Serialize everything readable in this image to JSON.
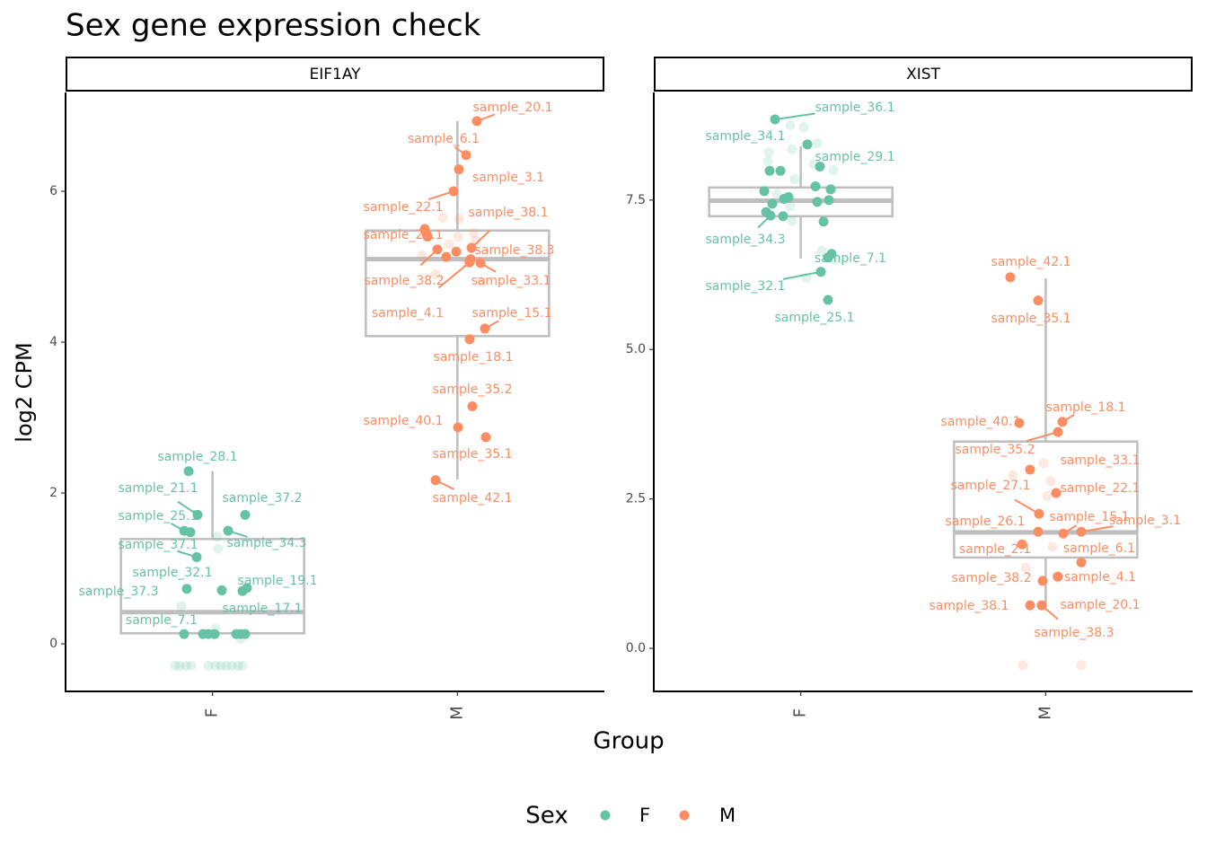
{
  "chart_data": {
    "type": "box",
    "title": "Sex gene expression check",
    "y_label": "log2 CPM",
    "x_label": "Group",
    "legend_title": "Sex",
    "legend": [
      {
        "name": "F",
        "color": "#66c2a5"
      },
      {
        "name": "M",
        "color": "#fc8d62"
      }
    ],
    "panels": [
      {
        "title": "EIF1AY",
        "categories": [
          "F",
          "M"
        ],
        "ylim": [
          -0.63,
          7.31
        ],
        "yticks": [
          0,
          2,
          4,
          6
        ],
        "boxes": [
          {
            "whisker_low": 0.13,
            "q1": 0.14,
            "median": 0.42,
            "q3": 1.39,
            "whisker_high": 2.29
          },
          {
            "whisker_low": 2.18,
            "q1": 4.08,
            "median": 5.1,
            "q3": 5.48,
            "whisker_high": 6.93
          }
        ],
        "series": [
          {
            "name": "F",
            "values": [
              2.29,
              1.71,
              1.71,
              1.5,
              1.5,
              1.15,
              0.73,
              0.74,
              0.71,
              0.7,
              0.13,
              1.48,
              0.13,
              0.13,
              0.13,
              0.13,
              0.13,
              0.13
            ],
            "labels": [
              "sample_28.1",
              "sample_21.1",
              "sample_37.2",
              "sample_25.1",
              "sample_34.3",
              "sample_37.1",
              "sample_32.1",
              "sample_19.1",
              "sample_37.3",
              "sample_17.1",
              "sample_7.1",
              null,
              null,
              null,
              null,
              null,
              null,
              null
            ],
            "faded": [
              -0.29,
              -0.29,
              -0.29,
              -0.29,
              -0.29,
              -0.29,
              -0.29,
              -0.29,
              -0.29,
              -0.29,
              -0.29,
              0.2,
              0.5,
              1.42,
              1.26,
              0.07
            ]
          },
          {
            "name": "M",
            "values": [
              6.93,
              6.48,
              6.29,
              6.0,
              5.25,
              5.43,
              5.1,
              5.23,
              5.05,
              5.06,
              4.18,
              4.04,
              3.15,
              2.87,
              2.74,
              2.17,
              5.5,
              5.4,
              5.13,
              5.2
            ],
            "labels": [
              "sample_20.1",
              "sample_6.1",
              "sample_3.1",
              "sample_22.1",
              "sample_38.1",
              "sample_24.1",
              "sample_38.3",
              "sample_38.2",
              "sample_33.1",
              "sample_4.1",
              "sample_15.1",
              "sample_18.1",
              "sample_35.2",
              "sample_40.1",
              "sample_35.1",
              "sample_42.1",
              null,
              null,
              null,
              null
            ],
            "faded": [
              5.65,
              5.63,
              5.4,
              5.35,
              5.45,
              5.15,
              5.05,
              4.8,
              4.9,
              5.3
            ]
          }
        ]
      },
      {
        "title": "XIST",
        "categories": [
          "F",
          "M"
        ],
        "ylim": [
          -0.72,
          9.3
        ],
        "yticks": [
          {
            "value": 0,
            "label": "0.0"
          },
          2.5,
          {
            "value": 5,
            "label": "5.0"
          },
          7.5
        ],
        "boxes": [
          {
            "whisker_low": 6.52,
            "q1": 7.23,
            "median": 7.49,
            "q3": 7.71,
            "whisker_high": 8.4
          },
          {
            "whisker_low": 0.72,
            "q1": 1.52,
            "median": 1.94,
            "q3": 3.46,
            "whisker_high": 6.19
          }
        ],
        "series": [
          {
            "name": "F",
            "values": [
              8.85,
              8.43,
              8.06,
              7.24,
              6.6,
              6.3,
              5.83,
              7.99,
              7.99,
              7.65,
              7.52,
              7.55,
              7.73,
              7.68,
              7.44,
              7.3,
              7.23,
              7.47,
              7.5,
              7.14,
              6.54
            ],
            "labels": [
              "sample_36.1",
              "sample_34.1",
              "sample_29.1",
              "sample_34.3",
              "sample_7.1",
              "sample_32.1",
              "sample_25.1",
              null,
              null,
              null,
              null,
              null,
              null,
              null,
              null,
              null,
              null,
              null,
              null,
              null,
              null
            ],
            "faded": [
              8.75,
              8.72,
              8.45,
              8.35,
              8.3,
              8.15,
              8.1,
              8.0,
              7.85,
              7.6,
              7.4,
              7.15,
              6.65,
              6.5,
              6.2
            ]
          },
          {
            "name": "M",
            "values": [
              6.21,
              5.82,
              3.77,
              3.79,
              3.62,
              2.99,
              2.25,
              2.6,
              1.92,
              1.95,
              1.95,
              1.74,
              1.44,
              1.13,
              0.72,
              0.72,
              1.2,
              0.72
            ],
            "labels": [
              "sample_42.1",
              "sample_35.1",
              "sample_40.1",
              "sample_18.1",
              "sample_35.2",
              "sample_33.1",
              "sample_27.1",
              "sample_22.1",
              "sample_15.1",
              "sample_3.1",
              "sample_26.1",
              "sample_2.1",
              "sample_6.1",
              "sample_38.2",
              "sample_38.1",
              "sample_20.1",
              "sample_4.1",
              "sample_38.3"
            ],
            "faded": [
              3.1,
              2.9,
              2.8,
              2.55,
              1.35,
              1.7,
              1.2,
              -0.28,
              -0.28
            ]
          }
        ]
      }
    ]
  }
}
